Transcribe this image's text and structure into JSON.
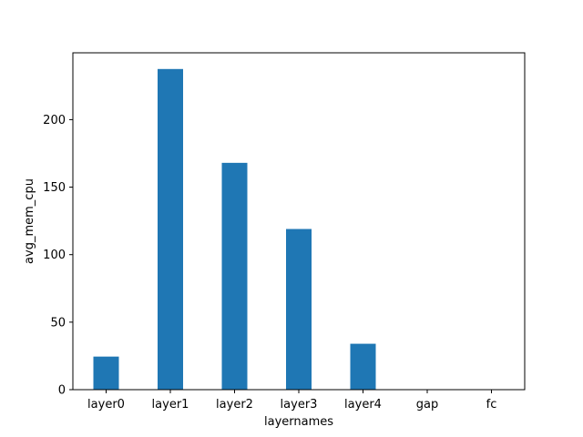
{
  "chart_data": {
    "type": "bar",
    "title": "",
    "xlabel": "layernames",
    "ylabel": "avg_mem_cpu",
    "categories": [
      "layer0",
      "layer1",
      "layer2",
      "layer3",
      "layer4",
      "gap",
      "fc"
    ],
    "values": [
      24.5,
      237.5,
      168,
      119,
      34,
      0.3,
      0.1
    ],
    "ylim": [
      0,
      249.5
    ],
    "yticks": [
      0,
      50,
      100,
      150,
      200
    ],
    "grid": false,
    "legend": "none",
    "colors": {
      "bar": "#1f77b4",
      "axis": "#000000",
      "background": "#ffffff"
    }
  }
}
